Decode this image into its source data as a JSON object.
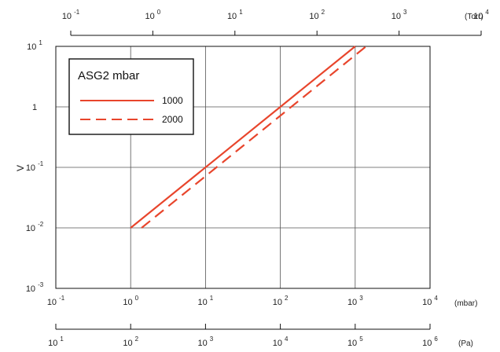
{
  "chart_data": {
    "type": "line",
    "scale": "log-log",
    "xlabel": "",
    "ylabel": "V",
    "xlim": [
      0.1,
      10000
    ],
    "ylim": [
      0.001,
      10
    ],
    "grid": true,
    "x_unit": "(mbar)",
    "x_ticks": [
      {
        "base": "10",
        "exp": "-1"
      },
      {
        "base": "10",
        "exp": "0"
      },
      {
        "base": "10",
        "exp": "1"
      },
      {
        "base": "10",
        "exp": "2"
      },
      {
        "base": "10",
        "exp": "3"
      },
      {
        "base": "10",
        "exp": "4"
      }
    ],
    "y_ticks": [
      {
        "base": "10",
        "exp": "1"
      },
      {
        "base": "1",
        "exp": ""
      },
      {
        "base": "10",
        "exp": "-1"
      },
      {
        "base": "10",
        "exp": "-2"
      },
      {
        "base": "10",
        "exp": "-3"
      }
    ],
    "top_axis": {
      "unit": "(Torr)",
      "ticks": [
        {
          "base": "10",
          "exp": "-1"
        },
        {
          "base": "10",
          "exp": "0"
        },
        {
          "base": "10",
          "exp": "1"
        },
        {
          "base": "10",
          "exp": "2"
        },
        {
          "base": "10",
          "exp": "3"
        },
        {
          "base": "10",
          "exp": "4"
        }
      ]
    },
    "bottom_axis": {
      "unit": "(Pa)",
      "ticks": [
        {
          "base": "10",
          "exp": "1"
        },
        {
          "base": "10",
          "exp": "2"
        },
        {
          "base": "10",
          "exp": "3"
        },
        {
          "base": "10",
          "exp": "4"
        },
        {
          "base": "10",
          "exp": "5"
        },
        {
          "base": "10",
          "exp": "6"
        }
      ]
    },
    "legend": {
      "title": "ASG2 mbar",
      "placement": "top-left"
    },
    "series": [
      {
        "name": "1000",
        "style": "solid",
        "color": "#e8452c",
        "x": [
          1,
          1000
        ],
        "y": [
          0.01,
          10
        ]
      },
      {
        "name": "2000",
        "style": "dashed",
        "color": "#e8452c",
        "x": [
          1.4,
          1400
        ],
        "y": [
          0.01,
          10
        ]
      }
    ]
  }
}
